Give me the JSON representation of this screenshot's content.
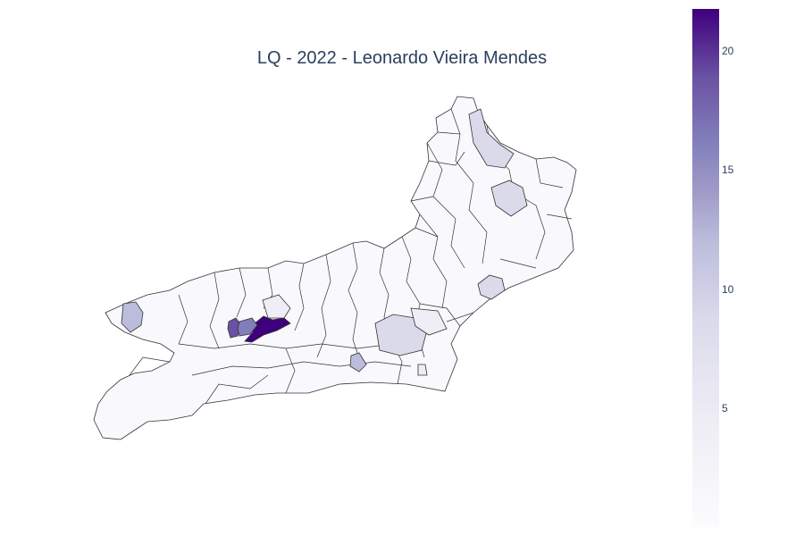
{
  "title": "LQ - 2022 - Leonardo Vieira Mendes",
  "colorscale": {
    "min_color": "#fcfbfd",
    "max_color": "#3f007d",
    "min": 0,
    "max": 21.8,
    "ticks": [
      "20",
      "15",
      "10",
      "5"
    ]
  },
  "map": {
    "region": "Rio de Janeiro state municipalities",
    "border_color": "#333333",
    "highlight_colors": {
      "high": "#3f007d",
      "mid_high": "#6a51a3",
      "mid": "#807dba",
      "low_mid": "#bcbddc",
      "low": "#dadaeb",
      "base": "#f7f6fb"
    }
  }
}
